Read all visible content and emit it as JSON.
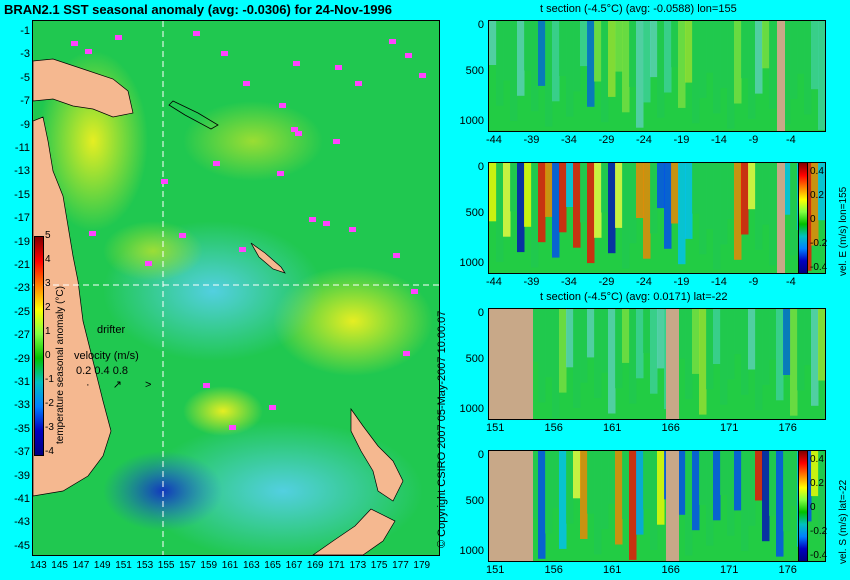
{
  "map": {
    "title": "BRAN2.1 SST seasonal anomaly (avg: -0.0306) for 24-Nov-1996",
    "ylabels": [
      "-1",
      "-3",
      "-5",
      "-7",
      "-9",
      "-11",
      "-13",
      "-15",
      "-17",
      "-19",
      "-21",
      "-23",
      "-25",
      "-27",
      "-29",
      "-31",
      "-33",
      "-35",
      "-37",
      "-39",
      "-41",
      "-43",
      "-45"
    ],
    "xlabels": [
      "143",
      "145",
      "147",
      "149",
      "151",
      "153",
      "155",
      "157",
      "159",
      "161",
      "163",
      "165",
      "167",
      "169",
      "171",
      "173",
      "175",
      "177",
      "179"
    ],
    "colorbar_label": "temperature seasonal anomaly (°C)",
    "colorbar_ticks": [
      "5",
      "4",
      "3",
      "2",
      "1",
      "0",
      "-1",
      "-2",
      "-3",
      "-4"
    ],
    "drifter_label": "drifter",
    "velocity_label": "velocity (m/s)",
    "velocity_values": "0.2 0.4 0.8",
    "velocity_arrows": "· ↗ >"
  },
  "credit": "© Copyright CSIRO 2007  05-May-2007 10:00:07",
  "panels": [
    {
      "title": "t section (-4.5°C) (avg: -0.0588) lon=155",
      "xlabels": [
        "-44",
        "-39",
        "-34",
        "-29",
        "-24",
        "-19",
        "-14",
        "-9",
        "-4"
      ],
      "ylabels": [
        "0",
        "500",
        "1000"
      ],
      "cbar_label": ""
    },
    {
      "title": "",
      "xlabels": [
        "-44",
        "-39",
        "-34",
        "-29",
        "-24",
        "-19",
        "-14",
        "-9",
        "-4"
      ],
      "ylabels": [
        "0",
        "500",
        "1000"
      ],
      "cbar_label": "vel. E (m/s) lon=155",
      "cbar_ticks": [
        "0.4",
        "0.2",
        "0",
        "-0.2",
        "-0.4"
      ]
    },
    {
      "title": "t section (-4.5°C) (avg: 0.0171) lat=-22",
      "xlabels": [
        "151",
        "156",
        "161",
        "166",
        "171",
        "176"
      ],
      "ylabels": [
        "0",
        "500",
        "1000"
      ],
      "cbar_label": ""
    },
    {
      "title": "",
      "xlabels": [
        "151",
        "156",
        "161",
        "166",
        "171",
        "176"
      ],
      "ylabels": [
        "0",
        "500",
        "1000"
      ],
      "cbar_label": "vel. S (m/s) lat=-22",
      "cbar_ticks": [
        "0.4",
        "0.2",
        "0",
        "-0.2",
        "-0.4"
      ]
    }
  ],
  "chart_data": [
    {
      "type": "heatmap",
      "title": "BRAN2.1 SST seasonal anomaly (avg: -0.0306) for 24-Nov-1996",
      "xlim": [
        142,
        180
      ],
      "ylim": [
        -45,
        0
      ],
      "color_range": [
        -4,
        5
      ]
    },
    {
      "type": "heatmap",
      "title": "t section (-4.5°C) (avg: -0.0588) lon=155",
      "xlim": [
        -45,
        0
      ],
      "ylim": [
        1050,
        0
      ]
    },
    {
      "type": "heatmap",
      "xlim": [
        -45,
        0
      ],
      "ylim": [
        1050,
        0
      ],
      "color_range": [
        -0.4,
        0.4
      ]
    },
    {
      "type": "heatmap",
      "title": "t section (-4.5°C) (avg: 0.0171) lat=-22",
      "xlim": [
        150,
        180
      ],
      "ylim": [
        1050,
        0
      ]
    },
    {
      "type": "heatmap",
      "xlim": [
        150,
        180
      ],
      "ylim": [
        1050,
        0
      ],
      "color_range": [
        -0.4,
        0.4
      ]
    }
  ],
  "colors": {
    "background": "#00ffff",
    "land": "#c8a888",
    "drifter": "#ff44ff",
    "field": "#22cc44"
  }
}
